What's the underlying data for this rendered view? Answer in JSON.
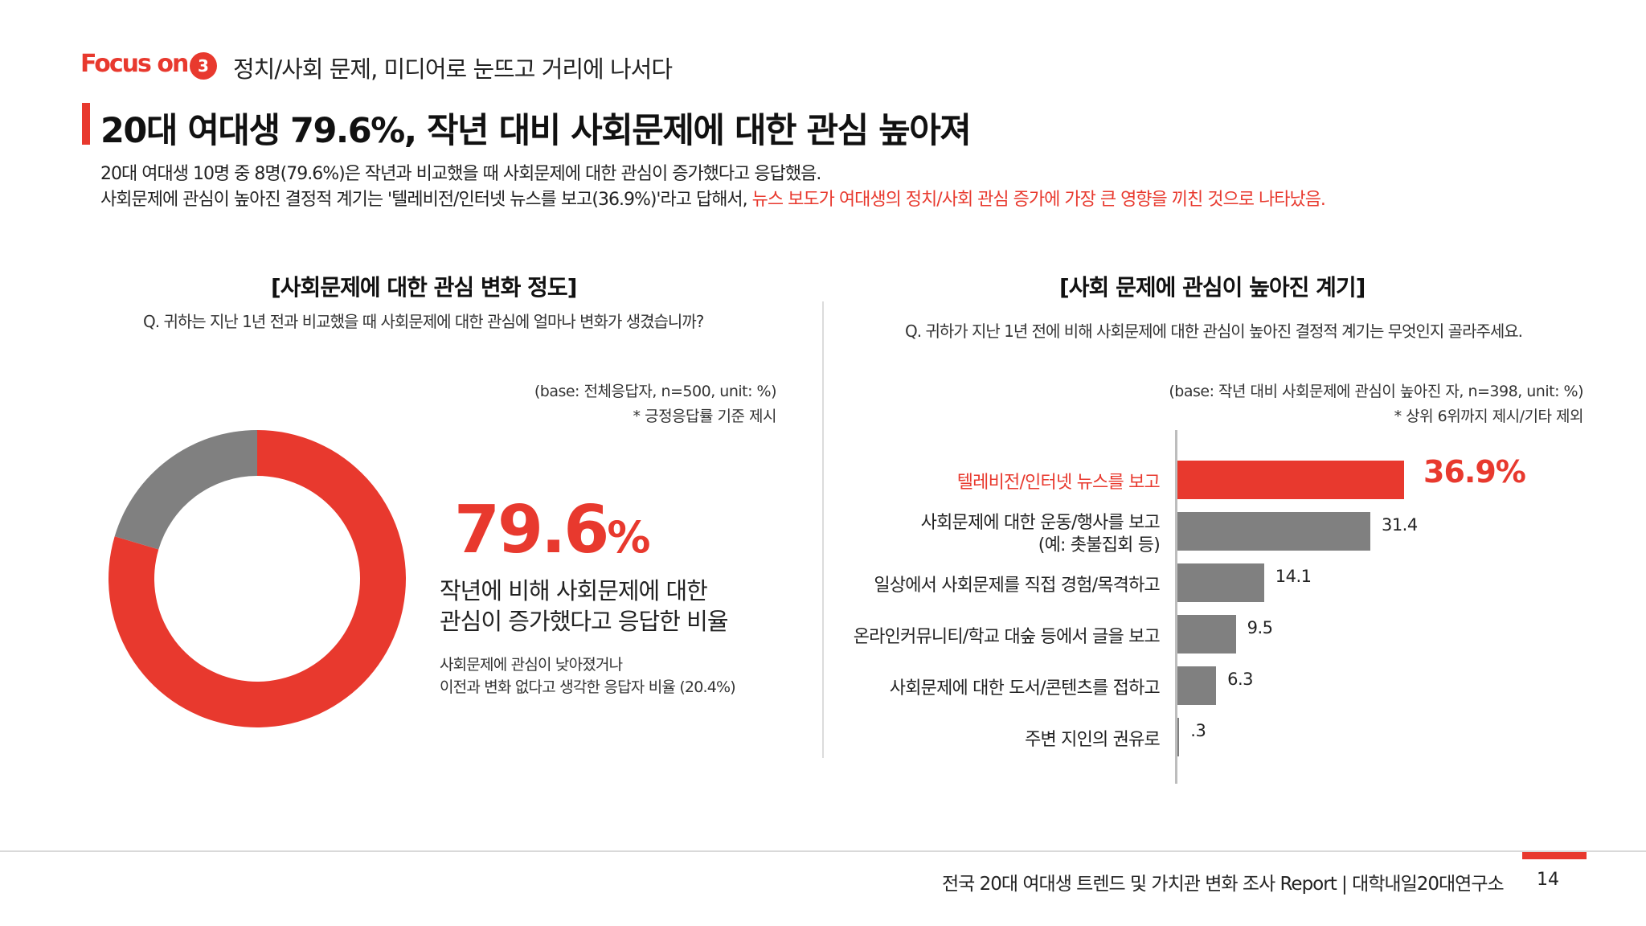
{
  "header": {
    "focus_label": "Focus on",
    "section_number": "3",
    "section_title": "정치/사회 문제, 미디어로 눈뜨고 거리에 나서다",
    "headline": "20대 여대생 79.6%, 작년 대비 사회문제에 대한 관심 높아져",
    "summary_line1": "20대 여대생 10명 중 8명(79.6%)은 작년과 비교했을 때 사회문제에 대한 관심이 증가했다고 응답했음.",
    "summary_line2_plain": "사회문제에 관심이 높아진 결정적 계기는 '텔레비전/인터넷 뉴스를 보고(36.9%)'라고 답해서, ",
    "summary_line2_highlight": "뉴스 보도가 여대생의 정치/사회 관심 증가에 가장 큰 영향을 끼친 것으로 나타났음."
  },
  "left_panel": {
    "title": "[사회문제에 대한 관심 변화 정도]",
    "question": "Q. 귀하는 지난 1년 전과 비교했을 때 사회문제에 대한 관심에 얼마나 변화가 생겼습니까?",
    "base_note": "(base: 전체응답자, n=500, unit: %)",
    "sub_note": "* 긍정응답률 기준 제시",
    "big_value": "79.6",
    "big_unit": "%",
    "desc_line1": "작년에 비해 사회문제에 대한",
    "desc_line2": "관심이 증가했다고 응답한 비율",
    "subdesc_line1": "사회문제에 관심이 낮아졌거나",
    "subdesc_line2": "이전과 변화 없다고 생각한 응답자 비율 (20.4%)"
  },
  "right_panel": {
    "title": "[사회 문제에 관심이 높아진 계기]",
    "question": "Q. 귀하가 지난 1년 전에 비해 사회문제에 대한 관심이 높아진 결정적 계기는 무엇인지 골라주세요.",
    "base_note": "(base: 작년 대비 사회문제에 관심이 높아진 자, n=398, unit: %)",
    "sub_note": "* 상위 6위까지 제시/기타 제외"
  },
  "chart_data": [
    {
      "type": "pie",
      "style": "donut",
      "slices": [
        {
          "label": "증가",
          "value": 79.6,
          "color": "#e8392e"
        },
        {
          "label": "감소/변화 없음",
          "value": 20.4,
          "color": "#808080"
        }
      ]
    },
    {
      "type": "bar",
      "orientation": "horizontal",
      "categories": [
        "텔레비전/인터넷 뉴스를 보고",
        "사회문제에 대한 운동/행사를 보고\n(예: 촛불집회 등)",
        "일상에서 사회문제를 직접 경험/목격하고",
        "온라인커뮤니티/학교 대숲 등에서 글을 보고",
        "사회문제에 대한 도서/콘텐츠를 접하고",
        "주변 지인의 권유로"
      ],
      "values": [
        36.9,
        31.4,
        14.1,
        9.5,
        6.3,
        0.3
      ],
      "value_labels": [
        "36.9%",
        "31.4",
        "14.1",
        "9.5",
        "6.3",
        ".3"
      ],
      "highlight_index": 0,
      "highlight_color": "#e8392e",
      "bar_color": "#808080",
      "xlim": [
        0,
        40
      ]
    }
  ],
  "footer": {
    "report_text": "전국 20대 여대생 트렌드 및 가치관 변화 조사 Report  |  대학내일20대연구소",
    "page_number": "14"
  }
}
